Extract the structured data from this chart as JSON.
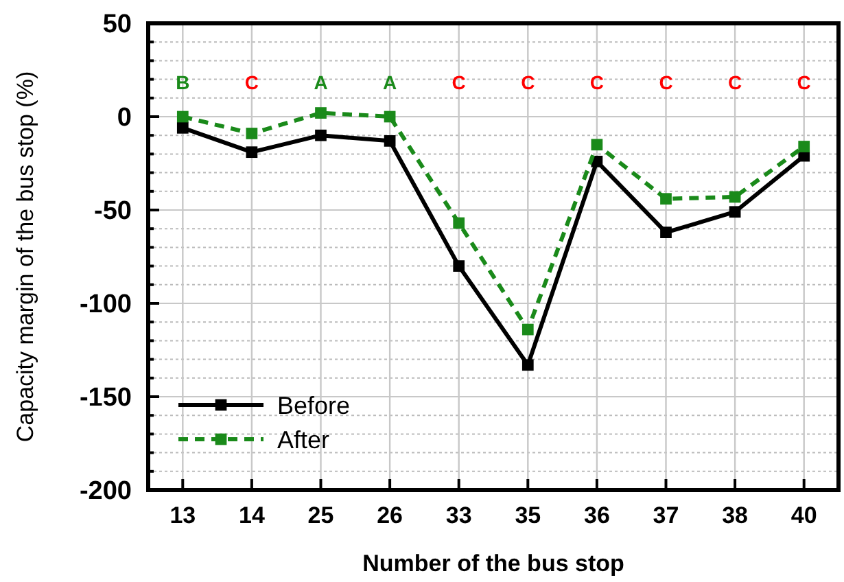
{
  "chart_data": {
    "type": "line",
    "xlabel": "Number of the bus stop",
    "ylabel": "Capacity margin of the bus stop (%)",
    "categories": [
      "13",
      "14",
      "25",
      "26",
      "33",
      "35",
      "36",
      "37",
      "38",
      "40"
    ],
    "series": [
      {
        "name": "Before",
        "color": "#000000",
        "values": [
          -6,
          -19,
          -10,
          -13,
          -80,
          -133,
          -24,
          -62,
          -51,
          -21
        ],
        "line_style": "solid",
        "marker": "square"
      },
      {
        "name": "After",
        "color": "#1a8a1a",
        "values": [
          0,
          -9,
          2,
          0,
          -57,
          -114,
          -15,
          -44,
          -43,
          -16
        ],
        "line_style": "dashed",
        "marker": "square"
      }
    ],
    "ylim": [
      -200,
      50
    ],
    "yticks": [
      -200,
      {
        "value": -190,
        "label": null
      },
      {
        "value": -180,
        "label": null
      },
      {
        "value": -170,
        "label": null
      },
      {
        "value": -160,
        "label": null
      },
      -150,
      {
        "value": -140,
        "label": null
      },
      {
        "value": -130,
        "label": null
      },
      {
        "value": -120,
        "label": null
      },
      {
        "value": -110,
        "label": null
      },
      -100,
      {
        "value": -90,
        "label": null
      },
      {
        "value": -80,
        "label": null
      },
      {
        "value": -70,
        "label": null
      },
      {
        "value": -60,
        "label": null
      },
      -50,
      {
        "value": -40,
        "label": null
      },
      {
        "value": -30,
        "label": null
      },
      {
        "value": -20,
        "label": null
      },
      {
        "value": -10,
        "label": null
      },
      0,
      {
        "value": 10,
        "label": null
      },
      {
        "value": 20,
        "label": null
      },
      {
        "value": 30,
        "label": null
      },
      {
        "value": 40,
        "label": null
      },
      50
    ],
    "grid": true,
    "legend": "bottom left",
    "annotations": [
      "B",
      "C",
      "A",
      "A",
      "C",
      "C",
      "C",
      "C",
      "C",
      "C"
    ]
  }
}
